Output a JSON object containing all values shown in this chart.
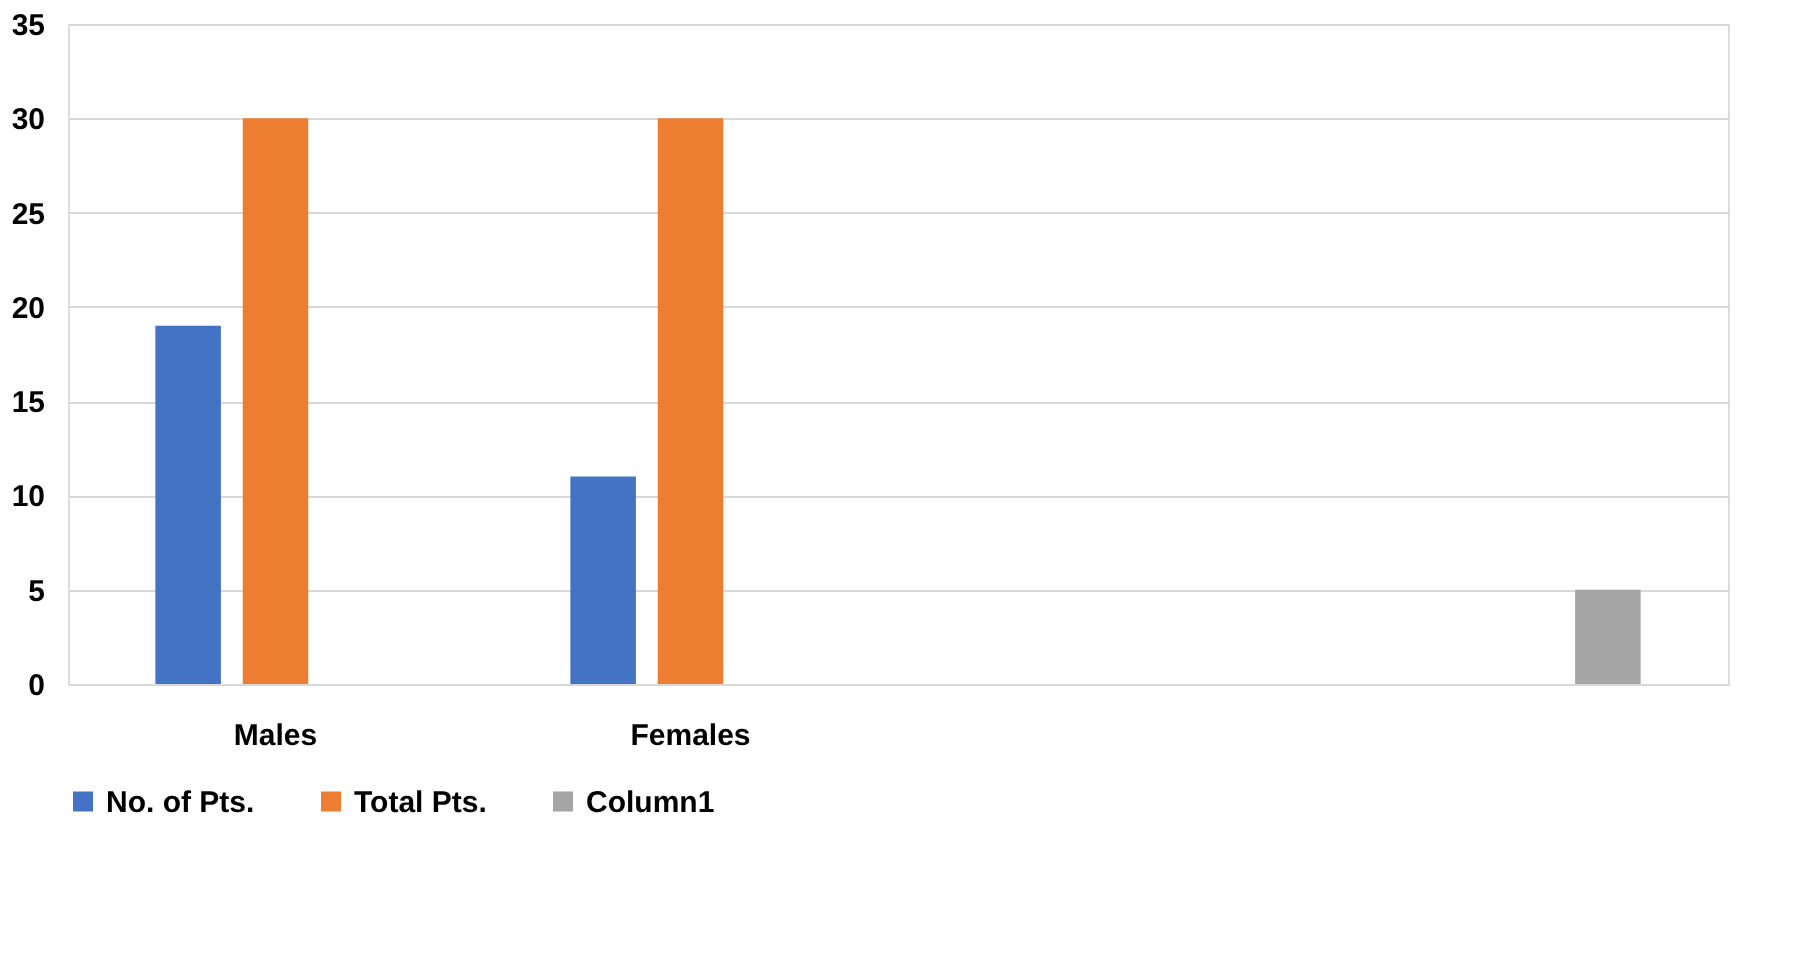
{
  "chart_data": {
    "type": "bar",
    "categories": [
      "Males",
      "Females",
      null,
      null
    ],
    "series": [
      {
        "name": "No. of Pts.",
        "color": "#4472c4",
        "values": [
          19,
          11,
          null,
          null
        ]
      },
      {
        "name": "Total Pts.",
        "color": "#ed7d31",
        "values": [
          30,
          30,
          null,
          null
        ]
      },
      {
        "name": "Column1",
        "color": "#a5a5a5",
        "values": [
          null,
          null,
          null,
          5
        ]
      }
    ],
    "ylim": [
      0,
      35
    ],
    "yticks": [
      0,
      5,
      10,
      15,
      20,
      25,
      30,
      35
    ],
    "grid": "y",
    "legend": "bottom"
  }
}
